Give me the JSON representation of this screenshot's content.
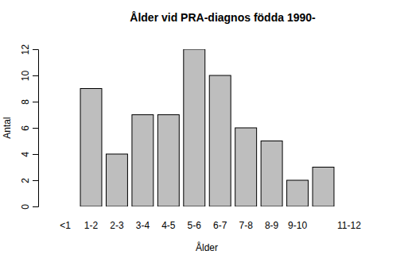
{
  "chart_data": {
    "type": "bar",
    "title": "Ålder vid PRA-diagnos födda 1990-",
    "x_label": "Ålder",
    "y_label": "Antal",
    "categories": [
      "<1",
      "1-2",
      "2-3",
      "3-4",
      "4-5",
      "5-6",
      "6-7",
      "7-8",
      "8-9",
      "9-10",
      null,
      "11-12"
    ],
    "values": [
      0,
      9,
      4,
      7,
      7,
      12,
      10,
      6,
      5,
      2,
      3,
      0
    ],
    "color": "#bebebe",
    "ylim": [
      0,
      12
    ],
    "yticks": [
      0,
      2,
      4,
      6,
      8,
      10,
      12
    ],
    "grid": false
  }
}
